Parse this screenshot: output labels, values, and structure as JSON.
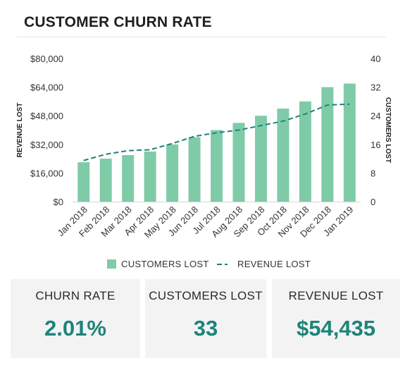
{
  "title": "CUSTOMER CHURN RATE",
  "colors": {
    "bar": "#7fcba8",
    "line": "#1f837a",
    "kpi_value": "#1f837a"
  },
  "legend": {
    "bar_label": "CUSTOMERS LOST",
    "line_label": "REVENUE LOST"
  },
  "kpis": [
    {
      "label": "CHURN RATE",
      "value": "2.01%"
    },
    {
      "label": "CUSTOMERS LOST",
      "value": "33"
    },
    {
      "label": "REVENUE LOST",
      "value": "$54,435"
    }
  ],
  "chart_data": {
    "type": "bar",
    "title": "CUSTOMER CHURN RATE",
    "categories": [
      "Jan 2018",
      "Feb 2018",
      "Mar 2018",
      "Apr 2018",
      "May 2018",
      "Jun 2018",
      "Jul 2018",
      "Aug 2018",
      "Sep 2018",
      "Oct 2018",
      "Nov 2018",
      "Dec 2018",
      "Jan 2019"
    ],
    "series": [
      {
        "name": "CUSTOMERS LOST",
        "type": "bar",
        "axis": "right",
        "values": [
          11,
          12,
          13,
          14,
          16,
          18,
          20,
          22,
          24,
          26,
          28,
          32,
          33
        ]
      },
      {
        "name": "REVENUE LOST",
        "type": "line",
        "style": "dashed",
        "axis": "left",
        "values": [
          23000,
          26500,
          28500,
          29000,
          32500,
          36500,
          38500,
          40000,
          42500,
          45000,
          49000,
          54000,
          54500
        ]
      }
    ],
    "ylabel": "REVENUE LOST",
    "y2label": "CUSTOMERS LOST",
    "ylim": [
      0,
      80000
    ],
    "y2lim": [
      0,
      40
    ],
    "yticks": [
      "$0",
      "$16,000",
      "$32,000",
      "$48,000",
      "$64,000",
      "$80,000"
    ],
    "y2ticks": [
      "0",
      "8",
      "16",
      "24",
      "32",
      "40"
    ],
    "grid": false,
    "legend_position": "bottom"
  }
}
